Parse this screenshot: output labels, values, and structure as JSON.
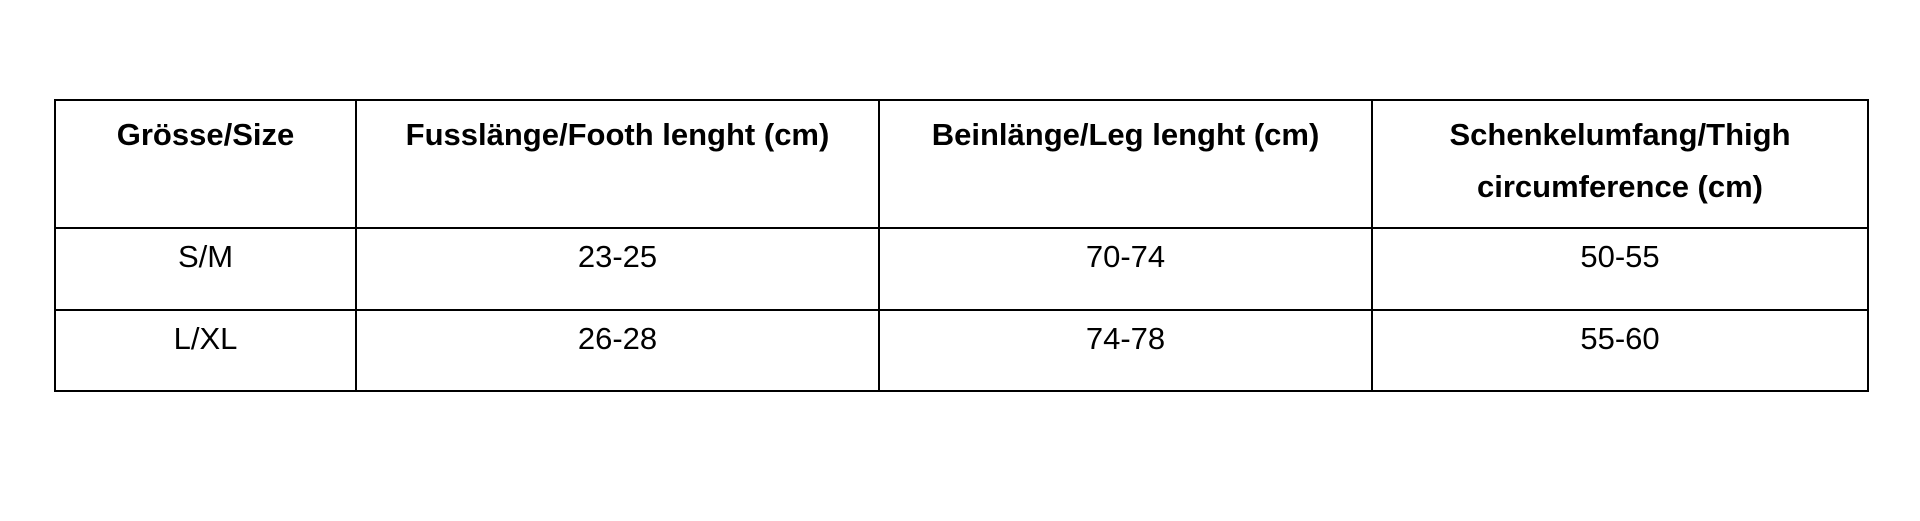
{
  "table": {
    "headers": [
      "Grösse/Size",
      "Fusslänge/Footh lenght (cm)",
      "Beinlänge/Leg lenght (cm)",
      "Schenkelumfang/Thigh circumference (cm)"
    ],
    "rows": [
      [
        "S/M",
        "23-25",
        "70-74",
        "50-55"
      ],
      [
        "L/XL",
        "26-28",
        "74-78",
        "55-60"
      ]
    ]
  }
}
